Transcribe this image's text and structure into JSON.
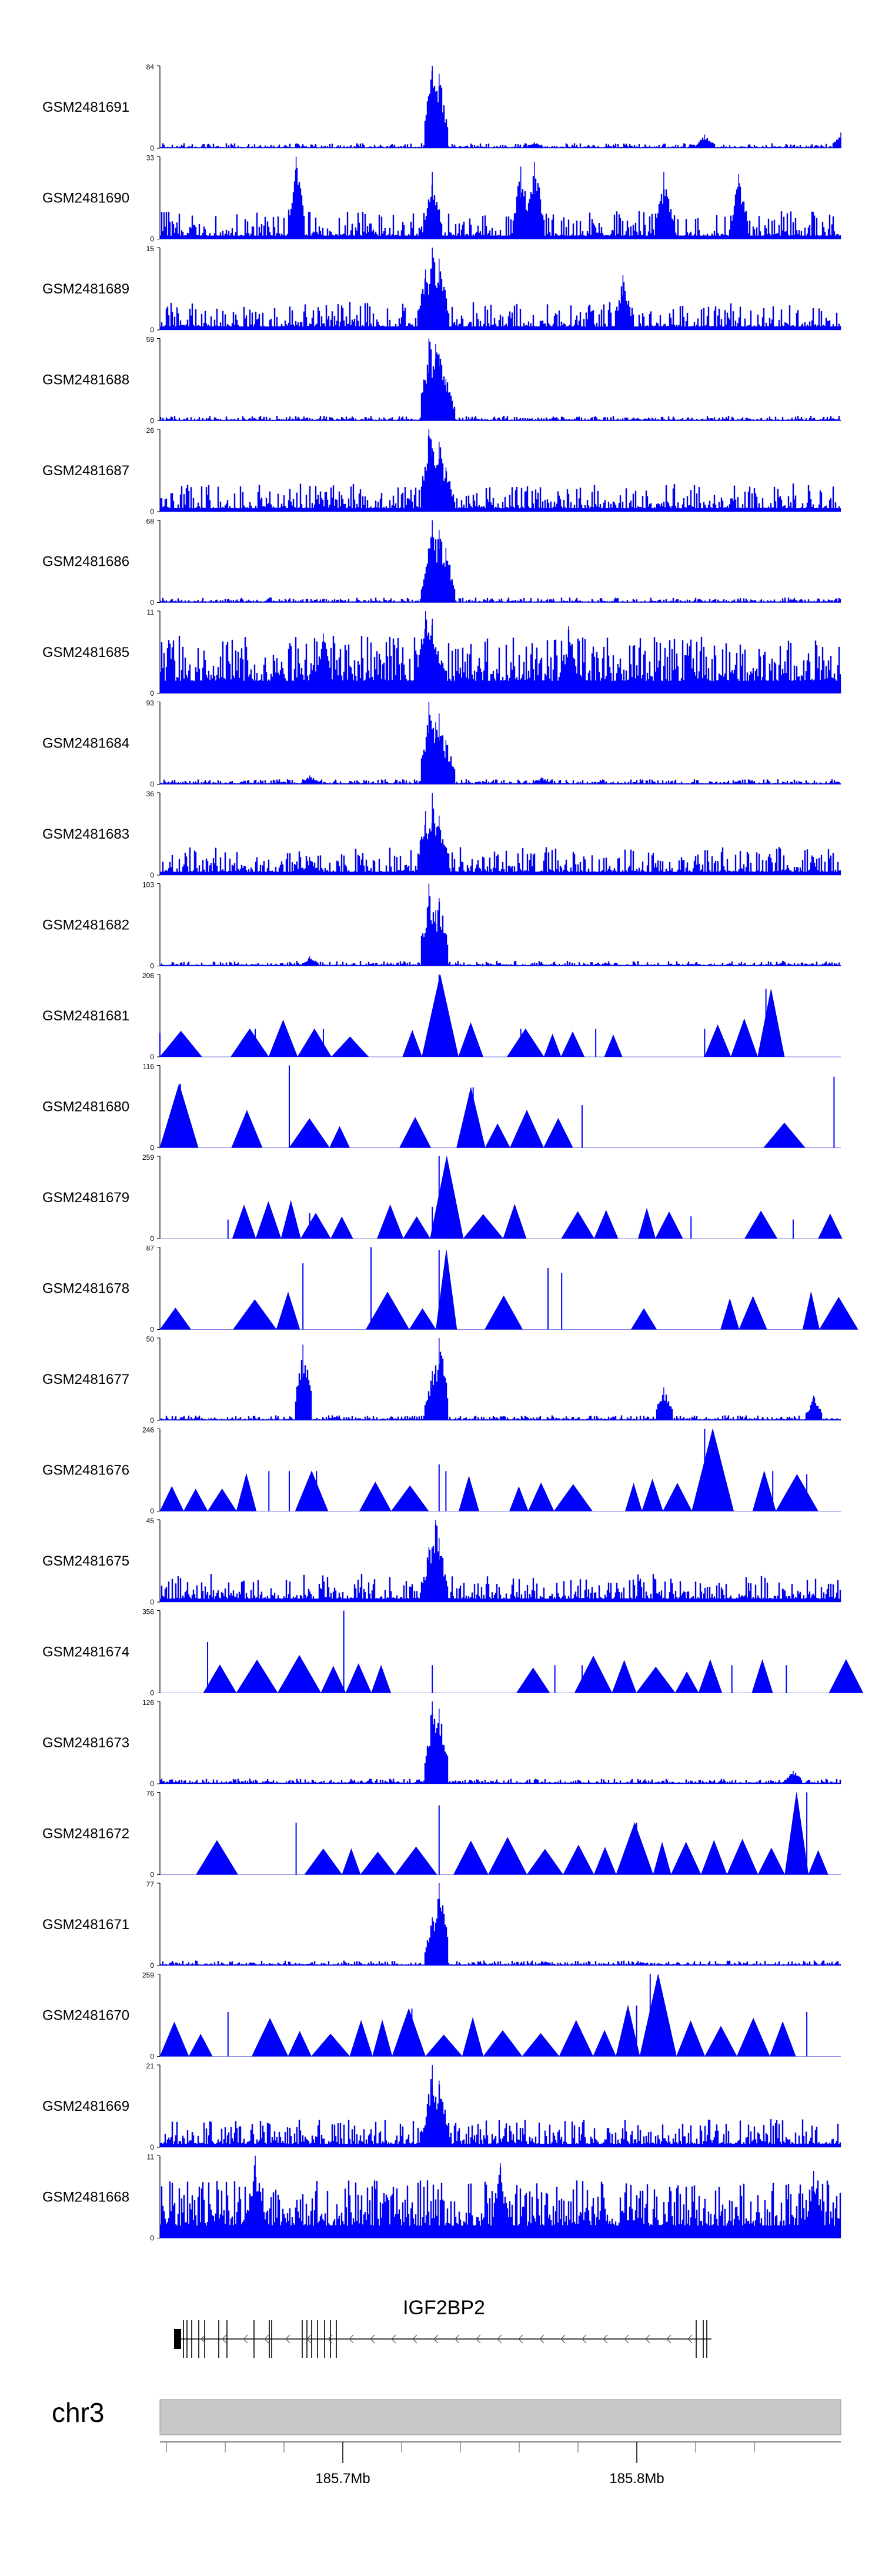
{
  "chart_data": {
    "type": "area",
    "title": "",
    "region": {
      "chromosome": "chr3",
      "gene": "IGF2BP2",
      "strand": "-",
      "axis_ticks": [
        {
          "position_mb": 185.7,
          "label": "185.7Mb"
        },
        {
          "position_mb": 185.8,
          "label": "185.8Mb"
        }
      ]
    },
    "tracks": [
      {
        "name": "GSM2481691",
        "ymax": 84,
        "ymin_label": "0",
        "style": "spiky",
        "peaks": [
          [
            0.4,
            84
          ],
          [
            0.41,
            76
          ],
          [
            0.55,
            6
          ],
          [
            0.8,
            14
          ],
          [
            1.0,
            16
          ]
        ]
      },
      {
        "name": "GSM2481690",
        "ymax": 33,
        "ymin_label": "0",
        "style": "noisy",
        "peaks": [
          [
            0.2,
            33
          ],
          [
            0.55,
            31
          ],
          [
            0.53,
            29
          ],
          [
            0.4,
            27
          ],
          [
            0.74,
            27
          ],
          [
            0.85,
            26
          ]
        ]
      },
      {
        "name": "GSM2481689",
        "ymax": 15,
        "ymin_label": "0",
        "style": "noisy",
        "peaks": [
          [
            0.4,
            15
          ],
          [
            0.41,
            13
          ],
          [
            0.39,
            11
          ],
          [
            0.68,
            10
          ]
        ]
      },
      {
        "name": "GSM2481688",
        "ymax": 59,
        "ymin_label": "0",
        "style": "spiky",
        "peaks": [
          [
            0.395,
            59
          ],
          [
            0.405,
            55
          ],
          [
            0.41,
            48
          ],
          [
            0.42,
            30
          ]
        ]
      },
      {
        "name": "GSM2481687",
        "ymax": 26,
        "ymin_label": "0",
        "style": "noisy",
        "peaks": [
          [
            0.395,
            26
          ],
          [
            0.41,
            22
          ],
          [
            0.4,
            20
          ],
          [
            0.42,
            14
          ]
        ]
      },
      {
        "name": "GSM2481686",
        "ymax": 68,
        "ymin_label": "0",
        "style": "spiky",
        "peaks": [
          [
            0.4,
            68
          ],
          [
            0.41,
            60
          ],
          [
            0.42,
            45
          ],
          [
            0.395,
            40
          ]
        ]
      },
      {
        "name": "GSM2481685",
        "ymax": 11,
        "ymin_label": "0",
        "style": "dense",
        "peaks": [
          [
            0.39,
            11
          ],
          [
            0.6,
            9
          ],
          [
            0.24,
            8
          ],
          [
            0.4,
            10
          ]
        ]
      },
      {
        "name": "GSM2481684",
        "ymax": 93,
        "ymin_label": "0",
        "style": "spiky",
        "peaks": [
          [
            0.395,
            93
          ],
          [
            0.41,
            80
          ],
          [
            0.405,
            70
          ],
          [
            0.42,
            50
          ],
          [
            0.22,
            10
          ],
          [
            0.56,
            8
          ]
        ]
      },
      {
        "name": "GSM2481683",
        "ymax": 36,
        "ymin_label": "0",
        "style": "noisy",
        "peaks": [
          [
            0.4,
            36
          ],
          [
            0.39,
            28
          ],
          [
            0.41,
            26
          ],
          [
            0.22,
            8
          ]
        ]
      },
      {
        "name": "GSM2481682",
        "ymax": 103,
        "ymin_label": "0",
        "style": "spiky",
        "peaks": [
          [
            0.395,
            103
          ],
          [
            0.41,
            85
          ],
          [
            0.405,
            70
          ],
          [
            0.22,
            12
          ]
        ]
      },
      {
        "name": "GSM2481681",
        "ymax": 206,
        "ymin_label": "0",
        "style": "triangles",
        "peaks": [
          [
            0.0,
            60
          ],
          [
            0.14,
            70
          ],
          [
            0.24,
            70
          ],
          [
            0.28,
            50
          ],
          [
            0.41,
            206
          ],
          [
            0.53,
            70
          ],
          [
            0.64,
            70
          ],
          [
            0.8,
            70
          ],
          [
            0.89,
            170
          ]
        ]
      },
      {
        "name": "GSM2481680",
        "ymax": 116,
        "ymin_label": "0",
        "style": "triangles",
        "peaks": [
          [
            0.03,
            90
          ],
          [
            0.19,
            116
          ],
          [
            0.46,
            85
          ],
          [
            0.62,
            60
          ],
          [
            0.99,
            100
          ]
        ]
      },
      {
        "name": "GSM2481679",
        "ymax": 259,
        "ymin_label": "0",
        "style": "triangles",
        "peaks": [
          [
            0.1,
            60
          ],
          [
            0.22,
            80
          ],
          [
            0.41,
            259
          ],
          [
            0.4,
            100
          ],
          [
            0.78,
            70
          ],
          [
            0.93,
            60
          ]
        ]
      },
      {
        "name": "GSM2481678",
        "ymax": 87,
        "ymin_label": "0",
        "style": "triangles",
        "peaks": [
          [
            0.31,
            87
          ],
          [
            0.41,
            84
          ],
          [
            0.21,
            70
          ],
          [
            0.57,
            65
          ],
          [
            0.59,
            60
          ]
        ]
      },
      {
        "name": "GSM2481677",
        "ymax": 50,
        "ymin_label": "0",
        "style": "spiky",
        "peaks": [
          [
            0.41,
            50
          ],
          [
            0.21,
            46
          ],
          [
            0.4,
            30
          ],
          [
            0.74,
            20
          ],
          [
            0.96,
            15
          ]
        ]
      },
      {
        "name": "GSM2481676",
        "ymax": 246,
        "ymin_label": "0",
        "style": "triangles",
        "peaks": [
          [
            0.16,
            120
          ],
          [
            0.19,
            120
          ],
          [
            0.23,
            120
          ],
          [
            0.41,
            140
          ],
          [
            0.42,
            120
          ],
          [
            0.8,
            246
          ],
          [
            0.9,
            120
          ],
          [
            0.95,
            110
          ]
        ]
      },
      {
        "name": "GSM2481675",
        "ymax": 45,
        "ymin_label": "0",
        "style": "noisy",
        "peaks": [
          [
            0.405,
            45
          ],
          [
            0.41,
            35
          ],
          [
            0.395,
            30
          ]
        ]
      },
      {
        "name": "GSM2481674",
        "ymax": 356,
        "ymin_label": "0",
        "style": "triangles",
        "peaks": [
          [
            0.07,
            220
          ],
          [
            0.27,
            356
          ],
          [
            0.4,
            120
          ],
          [
            0.58,
            120
          ],
          [
            0.62,
            120
          ],
          [
            0.84,
            120
          ],
          [
            0.92,
            120
          ]
        ]
      },
      {
        "name": "GSM2481673",
        "ymax": 126,
        "ymin_label": "0",
        "style": "spiky",
        "peaks": [
          [
            0.4,
            126
          ],
          [
            0.41,
            115
          ],
          [
            0.405,
            70
          ],
          [
            0.93,
            20
          ]
        ]
      },
      {
        "name": "GSM2481672",
        "ymax": 76,
        "ymin_label": "0",
        "style": "triangles",
        "peaks": [
          [
            0.41,
            64
          ],
          [
            0.7,
            48
          ],
          [
            0.95,
            76
          ],
          [
            0.2,
            48
          ]
        ]
      },
      {
        "name": "GSM2481671",
        "ymax": 77,
        "ymin_label": "0",
        "style": "spiky",
        "peaks": [
          [
            0.41,
            77
          ],
          [
            0.4,
            45
          ],
          [
            0.405,
            38
          ]
        ]
      },
      {
        "name": "GSM2481670",
        "ymax": 259,
        "ymin_label": "0",
        "style": "triangles",
        "peaks": [
          [
            0.72,
            259
          ],
          [
            0.37,
            150
          ],
          [
            0.7,
            160
          ],
          [
            0.1,
            140
          ],
          [
            0.95,
            140
          ]
        ]
      },
      {
        "name": "GSM2481669",
        "ymax": 21,
        "ymin_label": "0",
        "style": "noisy",
        "peaks": [
          [
            0.4,
            21
          ],
          [
            0.41,
            17
          ],
          [
            0.395,
            13
          ]
        ]
      },
      {
        "name": "GSM2481668",
        "ymax": 11,
        "ymin_label": "0",
        "style": "dense",
        "peaks": [
          [
            0.14,
            11
          ],
          [
            0.5,
            10
          ],
          [
            0.96,
            9
          ]
        ]
      }
    ]
  }
}
